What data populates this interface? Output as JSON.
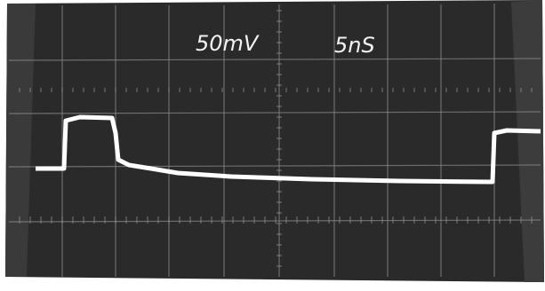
{
  "labels": {
    "volts_per_div": "50mV",
    "time_per_div": "5nS"
  }
}
